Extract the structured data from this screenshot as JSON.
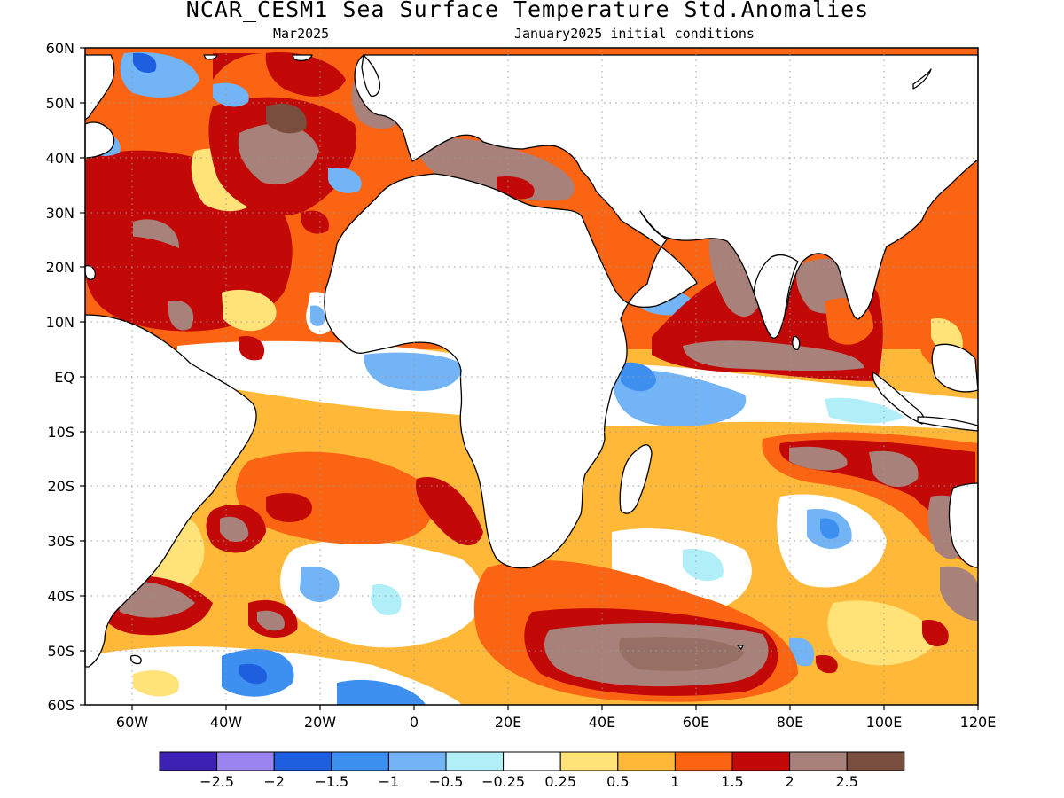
{
  "title": "NCAR_CESM1 Sea Surface Temperature Std.Anomalies",
  "forecast_month": "Mar2025",
  "initial_conditions": "January2025 initial conditions",
  "lat_labels": [
    "60N",
    "50N",
    "40N",
    "30N",
    "20N",
    "10N",
    "EQ",
    "10S",
    "20S",
    "30S",
    "40S",
    "50S",
    "60S"
  ],
  "lon_labels": [
    "60W",
    "40W",
    "20W",
    "0",
    "20E",
    "40E",
    "60E",
    "80E",
    "100E",
    "120E"
  ],
  "colorbar": {
    "colors": [
      "#3b22b4",
      "#9c85f0",
      "#1e5fe0",
      "#3d8ff0",
      "#72b4f6",
      "#b0eef8",
      "#ffffff",
      "#ffe278",
      "#ffb838",
      "#fa6412",
      "#c30808",
      "#a8817a",
      "#7a4e3e"
    ],
    "tick_labels": [
      "−2.5",
      "−2",
      "−1.5",
      "−1",
      "−0.5",
      "−0.25",
      "0.25",
      "0.5",
      "1",
      "1.5",
      "2",
      "2.5"
    ]
  },
  "colors": {
    "land": "#ffffff",
    "grid": "#999999"
  }
}
